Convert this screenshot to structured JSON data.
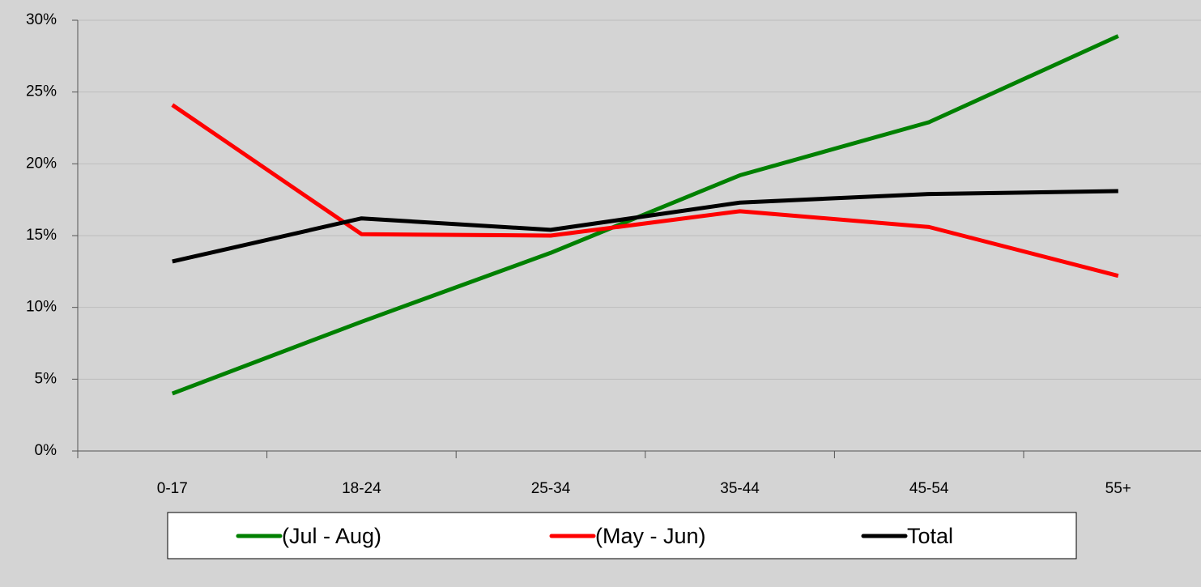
{
  "chart_data": {
    "type": "line",
    "categories": [
      "0-17",
      "18-24",
      "25-34",
      "35-44",
      "45-54",
      "55+"
    ],
    "series": [
      {
        "name": "(Jul - Aug)",
        "color": "#008000",
        "values": [
          4.0,
          9.0,
          13.8,
          19.2,
          22.9,
          28.9
        ]
      },
      {
        "name": "(May - Jun)",
        "color": "#ff0000",
        "values": [
          24.1,
          15.1,
          15.0,
          16.7,
          15.6,
          12.2
        ]
      },
      {
        "name": "Total",
        "color": "#000000",
        "values": [
          13.2,
          16.2,
          15.4,
          17.3,
          17.9,
          18.1
        ]
      }
    ],
    "ylim": [
      0,
      30
    ],
    "yticks": [
      {
        "value": 0,
        "label": "0%"
      },
      {
        "value": 5,
        "label": "5%"
      },
      {
        "value": 10,
        "label": "10%"
      },
      {
        "value": 15,
        "label": "15%"
      },
      {
        "value": 20,
        "label": "20%"
      },
      {
        "value": 25,
        "label": "25%"
      },
      {
        "value": 30,
        "label": "30%"
      }
    ],
    "grid": true,
    "legend": "bottom"
  }
}
